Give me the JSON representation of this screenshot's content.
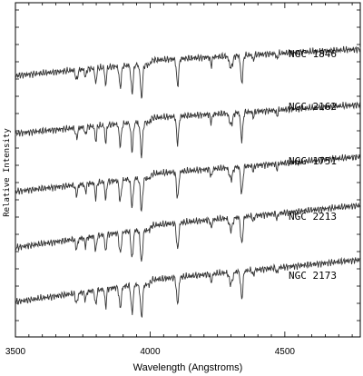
{
  "chart_data": {
    "type": "line",
    "xlabel": "Wavelength (Angstroms)",
    "ylabel": "Relative Intensity",
    "xlim": [
      3500,
      4780
    ],
    "xticks": [
      3500,
      4000,
      4500
    ],
    "grid": false,
    "legend": "none",
    "series_color": "#333333",
    "features_angstrom": [
      3727,
      3760,
      3798,
      3835,
      3889,
      3933,
      3968,
      4102,
      4227,
      4300,
      4340,
      4383,
      4471
    ],
    "series": [
      {
        "name": "NGC 1846",
        "offset": 4,
        "level": [
          0.3,
          0.52,
          0.74
        ]
      },
      {
        "name": "NGC 2162",
        "offset": 3,
        "level": [
          0.2,
          0.42,
          0.68
        ]
      },
      {
        "name": "NGC 1751",
        "offset": 2,
        "level": [
          0.22,
          0.48,
          0.82
        ]
      },
      {
        "name": "NGC 2213",
        "offset": 1,
        "level": [
          0.15,
          0.5,
          0.9
        ]
      },
      {
        "name": "NGC 2173",
        "offset": 0,
        "level": [
          0.1,
          0.45,
          0.85
        ]
      }
    ]
  }
}
